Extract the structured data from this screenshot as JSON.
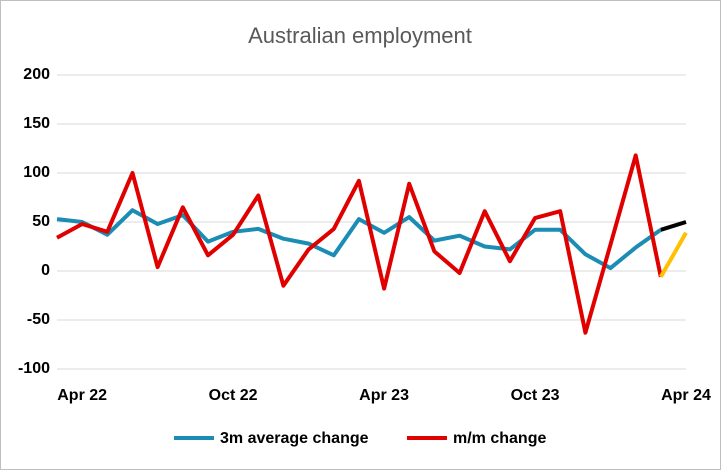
{
  "chart_data": {
    "type": "line",
    "title": "Australian employment",
    "categories": [
      null,
      "Apr 22",
      null,
      null,
      null,
      null,
      null,
      "Oct 22",
      null,
      null,
      null,
      null,
      null,
      "Apr 23",
      null,
      null,
      null,
      null,
      null,
      "Oct 23",
      null,
      null,
      null,
      null,
      null,
      "Apr 24"
    ],
    "series": [
      {
        "name": "3m average change",
        "color": "#1b8cb4",
        "values": [
          53,
          50,
          37,
          62,
          48,
          57,
          30,
          40,
          43,
          33,
          28,
          16,
          53,
          39,
          55,
          31,
          36,
          25,
          22,
          42,
          42,
          17,
          3,
          24,
          42,
          null
        ]
      },
      {
        "name": "m/m change",
        "color": "#e00000",
        "values": [
          34,
          48,
          40,
          100,
          4,
          65,
          16,
          37,
          77,
          -15,
          22,
          43,
          92,
          -18,
          89,
          20,
          -2,
          61,
          10,
          54,
          61,
          -63,
          27,
          118,
          -6,
          null
        ]
      },
      {
        "color": "#000000",
        "values": [
          null,
          null,
          null,
          null,
          null,
          null,
          null,
          null,
          null,
          null,
          null,
          null,
          null,
          null,
          null,
          null,
          null,
          null,
          null,
          null,
          null,
          null,
          null,
          null,
          42,
          50
        ]
      },
      {
        "color": "#ffc000",
        "values": [
          null,
          null,
          null,
          null,
          null,
          null,
          null,
          null,
          null,
          null,
          null,
          null,
          null,
          null,
          null,
          null,
          null,
          null,
          null,
          null,
          null,
          null,
          null,
          null,
          -6,
          39
        ]
      }
    ],
    "ylim": [
      -100,
      200
    ],
    "yticks": [
      -100,
      -50,
      0,
      50,
      100,
      150,
      200
    ],
    "grid": true
  }
}
